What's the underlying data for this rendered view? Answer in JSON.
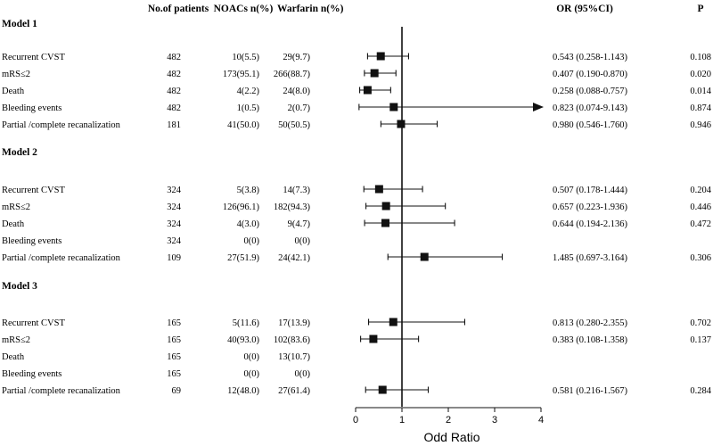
{
  "headers": {
    "patients": "No.of patients",
    "noacs": "NOACs n(%)",
    "warfarin": "Warfarin n(%)",
    "or": "OR (95%CI)",
    "p": "P"
  },
  "chart_data": {
    "type": "forest",
    "title": "",
    "xlabel": "Odd Ratio",
    "xlim": [
      0,
      4
    ],
    "xticks": [
      "0",
      "1",
      "2",
      "3",
      "4"
    ],
    "reference_line": 1,
    "models": [
      {
        "name": "Model 1",
        "rows": [
          {
            "label": "Recurrent CVST",
            "n": "482",
            "noacs": "10(5.5)",
            "warfarin": "29(9.7)",
            "or": 0.543,
            "lo": 0.258,
            "hi": 1.143,
            "or_text": "0.543 (0.258-1.143)",
            "p": "0.108",
            "arrow": false
          },
          {
            "label": "mRS≤2",
            "n": "482",
            "noacs": "173(95.1)",
            "warfarin": "266(88.7)",
            "or": 0.407,
            "lo": 0.19,
            "hi": 0.87,
            "or_text": "0.407 (0.190-0.870)",
            "p": "0.020",
            "arrow": false
          },
          {
            "label": "Death",
            "n": "482",
            "noacs": "4(2.2)",
            "warfarin": "24(8.0)",
            "or": 0.258,
            "lo": 0.088,
            "hi": 0.757,
            "or_text": "0.258 (0.088-0.757)",
            "p": "0.014",
            "arrow": false
          },
          {
            "label": "Bleeding events",
            "n": "482",
            "noacs": "1(0.5)",
            "warfarin": "2(0.7)",
            "or": 0.823,
            "lo": 0.074,
            "hi": 9.143,
            "or_text": "0.823 (0.074-9.143)",
            "p": "0.874",
            "arrow": true
          },
          {
            "label": "Partial /complete recanalization",
            "n": "181",
            "noacs": "41(50.0)",
            "warfarin": "50(50.5)",
            "or": 0.98,
            "lo": 0.546,
            "hi": 1.76,
            "or_text": "0.980 (0.546-1.760)",
            "p": "0.946",
            "arrow": false
          }
        ]
      },
      {
        "name": "Model 2",
        "rows": [
          {
            "label": "Recurrent CVST",
            "n": "324",
            "noacs": "5(3.8)",
            "warfarin": "14(7.3)",
            "or": 0.507,
            "lo": 0.178,
            "hi": 1.444,
            "or_text": "0.507 (0.178-1.444)",
            "p": "0.204",
            "arrow": false
          },
          {
            "label": "mRS≤2",
            "n": "324",
            "noacs": "126(96.1)",
            "warfarin": "182(94.3)",
            "or": 0.657,
            "lo": 0.223,
            "hi": 1.936,
            "or_text": "0.657 (0.223-1.936)",
            "p": "0.446",
            "arrow": false
          },
          {
            "label": "Death",
            "n": "324",
            "noacs": "4(3.0)",
            "warfarin": "9(4.7)",
            "or": 0.644,
            "lo": 0.194,
            "hi": 2.136,
            "or_text": "0.644 (0.194-2.136)",
            "p": "0.472",
            "arrow": false
          },
          {
            "label": "Bleeding events",
            "n": "324",
            "noacs": "0(0)",
            "warfarin": "0(0)",
            "or": null,
            "lo": null,
            "hi": null,
            "or_text": "",
            "p": "",
            "arrow": false
          },
          {
            "label": "Partial /complete recanalization",
            "n": "109",
            "noacs": "27(51.9)",
            "warfarin": "24(42.1)",
            "or": 1.485,
            "lo": 0.697,
            "hi": 3.164,
            "or_text": "1.485 (0.697-3.164)",
            "p": "0.306",
            "arrow": false
          }
        ]
      },
      {
        "name": "Model 3",
        "rows": [
          {
            "label": "Recurrent CVST",
            "n": "165",
            "noacs": "5(11.6)",
            "warfarin": "17(13.9)",
            "or": 0.813,
            "lo": 0.28,
            "hi": 2.355,
            "or_text": "0.813 (0.280-2.355)",
            "p": "0.702",
            "arrow": false
          },
          {
            "label": "mRS≤2",
            "n": "165",
            "noacs": "40(93.0)",
            "warfarin": "102(83.6)",
            "or": 0.383,
            "lo": 0.108,
            "hi": 1.358,
            "or_text": "0.383 (0.108-1.358)",
            "p": "0.137",
            "arrow": false
          },
          {
            "label": "Death",
            "n": "165",
            "noacs": "0(0)",
            "warfarin": "13(10.7)",
            "or": null,
            "lo": null,
            "hi": null,
            "or_text": "",
            "p": "",
            "arrow": false
          },
          {
            "label": "Bleeding events",
            "n": "165",
            "noacs": "0(0)",
            "warfarin": "0(0)",
            "or": null,
            "lo": null,
            "hi": null,
            "or_text": "",
            "p": "",
            "arrow": false
          },
          {
            "label": "Partial /complete recanalization",
            "n": "69",
            "noacs": "12(48.0)",
            "warfarin": "27(61.4)",
            "or": 0.581,
            "lo": 0.216,
            "hi": 1.567,
            "or_text": "0.581 (0.216-1.567)",
            "p": "0.284",
            "arrow": false
          }
        ]
      }
    ]
  }
}
